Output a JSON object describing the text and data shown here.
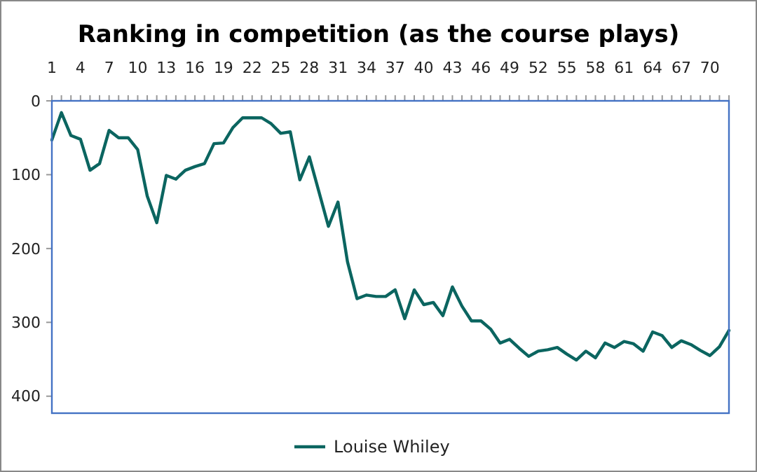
{
  "chart_data": {
    "type": "line",
    "title": "Ranking in competition (as the course plays)",
    "categories": [
      "1",
      null,
      null,
      "4",
      null,
      null,
      "7",
      null,
      null,
      "10",
      null,
      null,
      "13",
      null,
      null,
      "16",
      null,
      null,
      "19",
      null,
      null,
      "22",
      null,
      null,
      "25",
      null,
      null,
      "28",
      null,
      null,
      "31",
      null,
      null,
      "34",
      null,
      null,
      "37",
      null,
      null,
      "40",
      null,
      null,
      "43",
      null,
      null,
      "46",
      null,
      null,
      "49",
      null,
      null,
      "52",
      null,
      null,
      "55",
      null,
      null,
      "58",
      null,
      null,
      "61",
      null,
      null,
      "64",
      null,
      null,
      "67",
      null,
      null,
      "70",
      null,
      null
    ],
    "series": [
      {
        "name": "Louise Whiley",
        "color": "#0b6560",
        "values": [
          53,
          16,
          47,
          52,
          94,
          85,
          40,
          50,
          50,
          66,
          129,
          165,
          101,
          106,
          94,
          89,
          85,
          58,
          57,
          36,
          23,
          23,
          23,
          31,
          44,
          42,
          107,
          76,
          123,
          170,
          137,
          218,
          268,
          263,
          265,
          265,
          256,
          295,
          256,
          276,
          273,
          291,
          252,
          278,
          298,
          298,
          309,
          328,
          323,
          335,
          346,
          339,
          337,
          334,
          343,
          351,
          339,
          348,
          328,
          334,
          326,
          329,
          339,
          313,
          318,
          334,
          325,
          330,
          338,
          345,
          333,
          311
        ]
      }
    ],
    "ylim": [
      423,
      0
    ],
    "yticks": [
      0,
      100,
      200,
      300,
      400
    ],
    "legend": "bottom",
    "grid": false,
    "marker": "none",
    "line_style": "solid"
  }
}
